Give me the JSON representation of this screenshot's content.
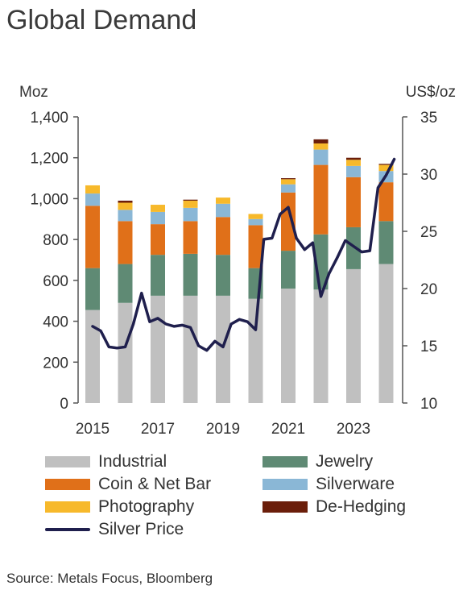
{
  "title": "Global Demand",
  "source": "Source: Metals Focus, Bloomberg",
  "colors": {
    "industrial": "#c0c0c0",
    "jewelry": "#5f8a74",
    "coin": "#e07019",
    "silverware": "#8ab7d6",
    "photography": "#f7b92b",
    "dehedging": "#6b1e0a",
    "price": "#1f1f4d"
  },
  "chart_data": {
    "type": "bar",
    "title": "Global Demand",
    "ylabel": "Moz",
    "y2label": "US$/oz",
    "ylim": [
      0,
      1400
    ],
    "y2lim": [
      10,
      35
    ],
    "yticks": [
      "0",
      "200",
      "400",
      "600",
      "800",
      "1,000",
      "1,200",
      "1,400"
    ],
    "y2ticks": [
      "10",
      "15",
      "20",
      "25",
      "30",
      "35"
    ],
    "categories": [
      "2015",
      "2016",
      "2017",
      "2018",
      "2019",
      "2020",
      "2021",
      "2022",
      "2023",
      "2024"
    ],
    "xtick_labels": [
      "2015",
      "",
      "2017",
      "",
      "2019",
      "",
      "2021",
      "",
      "2023",
      ""
    ],
    "series": [
      {
        "name": "Industrial",
        "key": "industrial",
        "values": [
          455,
          490,
          525,
          525,
          525,
          510,
          560,
          555,
          655,
          680
        ]
      },
      {
        "name": "Jewelry",
        "key": "jewelry",
        "values": [
          205,
          190,
          200,
          205,
          200,
          150,
          185,
          270,
          205,
          210
        ]
      },
      {
        "name": "Coin & Net Bar",
        "key": "coin",
        "values": [
          305,
          210,
          150,
          160,
          185,
          210,
          285,
          340,
          245,
          190
        ]
      },
      {
        "name": "Silverware",
        "key": "silverware",
        "values": [
          60,
          55,
          60,
          65,
          65,
          30,
          40,
          75,
          55,
          55
        ]
      },
      {
        "name": "Photography",
        "key": "photography",
        "values": [
          40,
          35,
          35,
          35,
          30,
          25,
          25,
          30,
          30,
          30
        ]
      },
      {
        "name": "De-Hedging",
        "key": "dehedging",
        "values": [
          0,
          10,
          0,
          5,
          0,
          0,
          5,
          20,
          10,
          5
        ]
      }
    ],
    "line_series": {
      "name": "Silver Price",
      "axis": "right",
      "x": [
        2015.0,
        2015.25,
        2015.5,
        2015.75,
        2016.0,
        2016.25,
        2016.5,
        2016.75,
        2017.0,
        2017.25,
        2017.5,
        2017.75,
        2018.0,
        2018.25,
        2018.5,
        2018.75,
        2019.0,
        2019.25,
        2019.5,
        2019.75,
        2020.0,
        2020.25,
        2020.5,
        2020.75,
        2021.0,
        2021.25,
        2021.5,
        2021.75,
        2022.0,
        2022.25,
        2022.5,
        2022.75,
        2023.0,
        2023.25,
        2023.5,
        2023.75,
        2024.0,
        2024.25
      ],
      "values": [
        16.7,
        16.3,
        14.9,
        14.8,
        14.9,
        16.9,
        19.6,
        17.1,
        17.4,
        16.9,
        16.7,
        16.8,
        16.6,
        15.0,
        14.6,
        15.4,
        14.9,
        16.9,
        17.3,
        17.1,
        16.4,
        24.3,
        24.4,
        26.5,
        27.1,
        24.4,
        23.4,
        24.0,
        19.3,
        21.3,
        22.7,
        24.2,
        23.7,
        23.2,
        23.3,
        28.8,
        29.9,
        31.3
      ]
    },
    "legend_placement": "bottom",
    "grid": false
  },
  "legend": {
    "items": [
      {
        "label": "Industrial",
        "key": "industrial",
        "kind": "box"
      },
      {
        "label": "Jewelry",
        "key": "jewelry",
        "kind": "box"
      },
      {
        "label": "Coin & Net Bar",
        "key": "coin",
        "kind": "box"
      },
      {
        "label": "Silverware",
        "key": "silverware",
        "kind": "box"
      },
      {
        "label": "Photography",
        "key": "photography",
        "kind": "box"
      },
      {
        "label": "De-Hedging",
        "key": "dehedging",
        "kind": "box"
      },
      {
        "label": "Silver Price",
        "key": "price",
        "kind": "line"
      }
    ]
  }
}
